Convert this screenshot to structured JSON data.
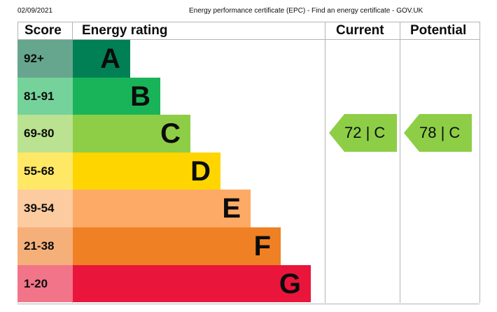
{
  "header": {
    "date": "02/09/2021",
    "title": "Energy performance certificate (EPC) - Find an energy certificate - GOV.UK"
  },
  "table": {
    "col_score": "Score",
    "col_rating": "Energy rating",
    "col_current": "Current",
    "col_potential": "Potential"
  },
  "current": {
    "score": "72",
    "band": "C",
    "label": "72 |  C",
    "color": "#8dce46"
  },
  "potential": {
    "score": "78",
    "band": "C",
    "label": "78 |  C",
    "color": "#8dce46"
  },
  "chart_data": {
    "type": "bar",
    "title": "Energy rating",
    "categories": [
      "A",
      "B",
      "C",
      "D",
      "E",
      "F",
      "G"
    ],
    "score_ranges": [
      "92+",
      "81-91",
      "69-80",
      "55-68",
      "39-54",
      "21-38",
      "1-20"
    ],
    "bar_colors": [
      "#008054",
      "#19b459",
      "#8dce46",
      "#ffd500",
      "#fcaa65",
      "#ef8023",
      "#e9153b"
    ],
    "score_colors": [
      "#66a68e",
      "#75d29b",
      "#bbe290",
      "#ffe866",
      "#fdcba0",
      "#f5b07a",
      "#f27489"
    ],
    "values": [
      1,
      2,
      3,
      4,
      5,
      6,
      7
    ],
    "current": {
      "score": 72,
      "band": "C"
    },
    "potential": {
      "score": 78,
      "band": "C"
    }
  }
}
